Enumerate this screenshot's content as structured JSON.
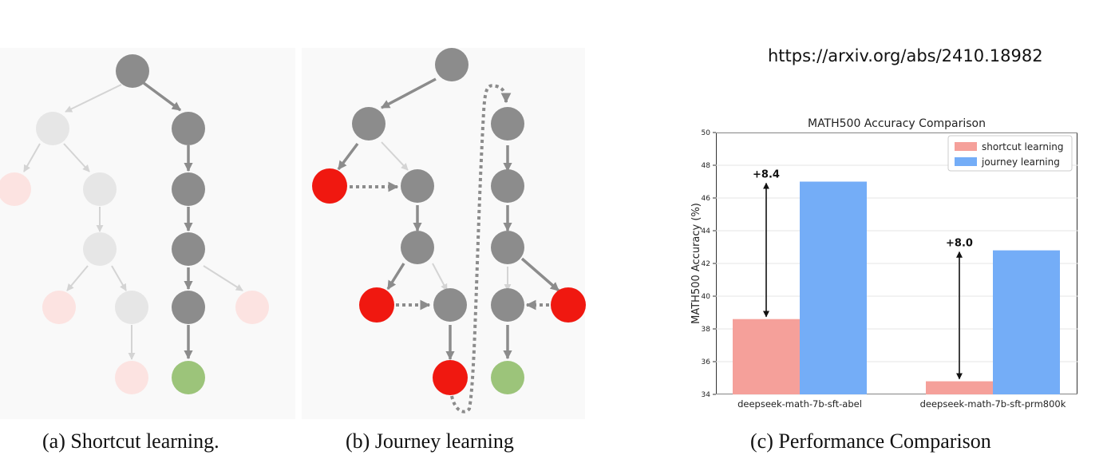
{
  "url": "https://arxiv.org/abs/2410.18982",
  "captions": {
    "a": "(a) Shortcut learning.",
    "b": "(b) Journey learning",
    "c": "(c) Performance Comparison"
  },
  "colors": {
    "node_dark": "#8c8c8c",
    "node_faded": "#e6e6e6",
    "node_red": "#f01810",
    "node_red_faded": "#fce3e1",
    "node_green": "#9cc47a",
    "bar_shortcut": "#f5a09a",
    "bar_journey": "#74adf7"
  },
  "chart_data": {
    "type": "bar",
    "title": "MATH500 Accuracy Comparison",
    "xlabel": "",
    "ylabel": "MATH500 Accuracy (%)",
    "categories": [
      "deepseek-math-7b-sft-abel",
      "deepseek-math-7b-sft-prm800k"
    ],
    "series": [
      {
        "name": "shortcut learning",
        "values": [
          38.6,
          34.8
        ],
        "color": "#f5a09a"
      },
      {
        "name": "journey learning",
        "values": [
          47.0,
          42.8
        ],
        "color": "#74adf7"
      }
    ],
    "annotations": [
      "+8.4",
      "+8.0"
    ],
    "ylim": [
      34,
      50
    ],
    "yticks": [
      34,
      36,
      38,
      40,
      42,
      44,
      46,
      48,
      50
    ],
    "legend": "top-right",
    "grid": true
  }
}
